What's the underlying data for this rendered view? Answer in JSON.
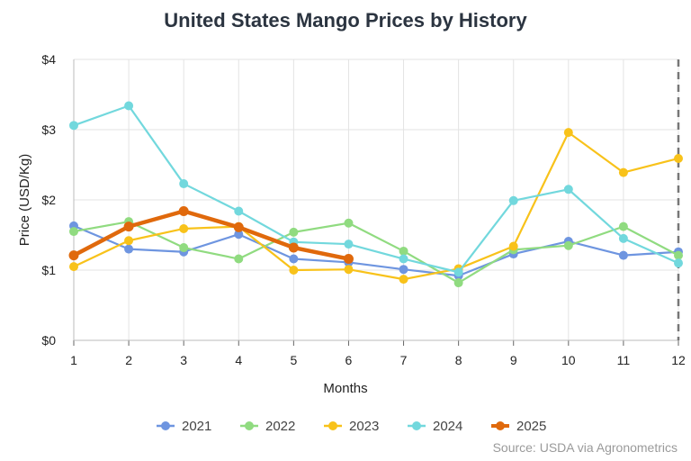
{
  "chart_data": {
    "type": "line",
    "title": "United States Mango Prices by History",
    "xlabel": "Months",
    "ylabel": "Price (USD/Kg)",
    "x": [
      1,
      2,
      3,
      4,
      5,
      6,
      7,
      8,
      9,
      10,
      11,
      12
    ],
    "x_tick_labels": [
      "1",
      "2",
      "3",
      "4",
      "5",
      "6",
      "7",
      "8",
      "9",
      "10",
      "11",
      "12"
    ],
    "xlim": [
      1,
      12
    ],
    "ylim": [
      0,
      4
    ],
    "y_tick_labels": [
      "$0",
      "$1",
      "$2",
      "$3",
      "$4"
    ],
    "y_ticks": [
      0,
      1,
      2,
      3,
      4
    ],
    "grid": true,
    "legend_position": "bottom",
    "series": [
      {
        "name": "2021",
        "color": "#6e95e0",
        "values": [
          1.63,
          1.3,
          1.26,
          1.51,
          1.16,
          1.11,
          1.01,
          0.92,
          1.23,
          1.41,
          1.21,
          1.26
        ]
      },
      {
        "name": "2022",
        "color": "#90db80",
        "values": [
          1.55,
          1.69,
          1.32,
          1.16,
          1.54,
          1.67,
          1.27,
          0.82,
          1.29,
          1.35,
          1.62,
          1.21
        ]
      },
      {
        "name": "2023",
        "color": "#f8c21a",
        "values": [
          1.05,
          1.42,
          1.59,
          1.62,
          1.0,
          1.01,
          0.87,
          1.02,
          1.34,
          2.96,
          2.39,
          2.59
        ]
      },
      {
        "name": "2024",
        "color": "#72d8dd",
        "values": [
          3.06,
          3.34,
          2.23,
          1.84,
          1.4,
          1.37,
          1.16,
          0.97,
          1.99,
          2.15,
          1.45,
          1.1
        ]
      },
      {
        "name": "2025",
        "color": "#e0690c",
        "bold": true,
        "values": [
          1.21,
          1.62,
          1.84,
          1.61,
          1.32,
          1.16,
          null,
          null,
          null,
          null,
          null,
          null
        ]
      }
    ],
    "annotations": [
      {
        "type": "vertical-dashed-line",
        "x": 12
      }
    ],
    "source": "Source: USDA via Agronometrics"
  }
}
